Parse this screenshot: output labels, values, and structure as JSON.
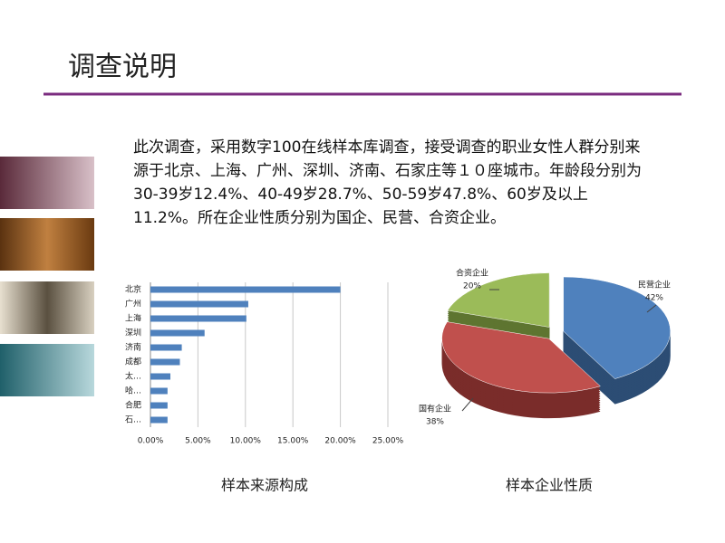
{
  "slide": {
    "title": "调查说明",
    "paragraph": "此次调查，采用数字100在线样本库调查，接受调查的职业女性人群分别来源于北京、上海、广州、深圳、济南、石家庄等１０座城市。年龄段分别为30-39岁12.4%、40-49岁28.7%、50-59岁47.8%、60岁及以上11.2%。所在企业性质分别为国企、民营、合资企业。"
  },
  "chart_data": [
    {
      "type": "hbar",
      "title": "样本来源构成",
      "categories": [
        "北京",
        "广州",
        "上海",
        "深圳",
        "济南",
        "成都",
        "太…",
        "哈…",
        "合肥",
        "石…"
      ],
      "values": [
        20,
        10.3,
        10.1,
        5.7,
        3.3,
        3.1,
        2.1,
        1.8,
        1.8,
        1.8
      ],
      "color": "#4f81bd",
      "xlim": [
        0,
        25
      ],
      "xticks": [
        {
          "value": 0,
          "label": "0.00%"
        },
        {
          "value": 5,
          "label": "5.00%"
        },
        {
          "value": 10,
          "label": "10.00%"
        },
        {
          "value": 15,
          "label": "15.00%"
        },
        {
          "value": 20,
          "label": "20.00%"
        },
        {
          "value": 25,
          "label": "25.00%"
        }
      ],
      "grid": true
    },
    {
      "type": "pie",
      "title": "样本企业性质",
      "categories": [
        "民营企业",
        "国有企业",
        "合资企业"
      ],
      "values": [
        42,
        38,
        20
      ],
      "value_labels": [
        "42%",
        "38%",
        "20%"
      ],
      "colors": [
        "#4f81bd",
        "#c0504d",
        "#9bbb59"
      ]
    }
  ]
}
